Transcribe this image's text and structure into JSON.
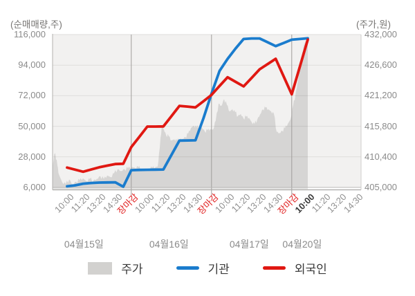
{
  "axes": {
    "left_title": "(순매매량,주)",
    "right_title": "(주가,원)",
    "left_ticks": [
      "116,000",
      "94,000",
      "72,000",
      "50,000",
      "28,000",
      "6,000"
    ],
    "right_ticks": [
      "432,000",
      "426,600",
      "421,200",
      "415,800",
      "410,400",
      "405,000"
    ]
  },
  "x_axis": {
    "tick_labels": [
      {
        "text": "10:00",
        "slot": 0,
        "style": "normal"
      },
      {
        "text": "11:20",
        "slot": 2,
        "style": "normal"
      },
      {
        "text": "13:20",
        "slot": 4,
        "style": "normal"
      },
      {
        "text": "14:30",
        "slot": 6,
        "style": "normal"
      },
      {
        "text": "장마감",
        "slot": 8,
        "style": "close"
      },
      {
        "text": "10:00",
        "slot": 10,
        "style": "normal"
      },
      {
        "text": "11:20",
        "slot": 12,
        "style": "normal"
      },
      {
        "text": "13:20",
        "slot": 14,
        "style": "normal"
      },
      {
        "text": "14:30",
        "slot": 16,
        "style": "normal"
      },
      {
        "text": "장마감",
        "slot": 18,
        "style": "close"
      },
      {
        "text": "10:00",
        "slot": 20,
        "style": "normal"
      },
      {
        "text": "11:20",
        "slot": 22,
        "style": "normal"
      },
      {
        "text": "13:20",
        "slot": 24,
        "style": "normal"
      },
      {
        "text": "14:30",
        "slot": 26,
        "style": "normal"
      },
      {
        "text": "장마감",
        "slot": 28,
        "style": "close"
      },
      {
        "text": "10:00",
        "slot": 30,
        "style": "current"
      },
      {
        "text": "11:20",
        "slot": 32,
        "style": "normal"
      },
      {
        "text": "13:20",
        "slot": 34,
        "style": "normal"
      },
      {
        "text": "14:30",
        "slot": 36,
        "style": "normal"
      }
    ],
    "day_labels": [
      {
        "text": "04월15일",
        "slot": 2.1
      },
      {
        "text": "04월16일",
        "slot": 12.7
      },
      {
        "text": "04월17일",
        "slot": 22.7
      },
      {
        "text": "04월20일",
        "slot": 29.3
      }
    ]
  },
  "legend": {
    "items": [
      {
        "label": "주가",
        "marker": "area",
        "color": "#d2d1cf"
      },
      {
        "label": "기관",
        "marker": "line",
        "color": "#1a7ccd"
      },
      {
        "label": "외국인",
        "marker": "line",
        "color": "#e01812"
      }
    ]
  },
  "chart_data": {
    "type": "area+line",
    "title": "",
    "left_axis": {
      "label": "(순매매량,주)",
      "min": 6000,
      "max": 116000,
      "tick_step": 22000
    },
    "right_axis": {
      "label": "(주가,원)",
      "min": 405000,
      "max": 432000,
      "tick_step": 5400
    },
    "x_note": "slots are half-label intervals; labels sit on even slots; data ends at slot 30 (04월20일 10:00)",
    "day_boundary_slots": [
      8,
      18,
      28
    ],
    "series": [
      {
        "name": "주가",
        "type": "area",
        "axis": "right",
        "fill": "rgba(25,22,18,0.125)",
        "points": [
          [
            -1.81,
            408300
          ],
          [
            -1.6,
            410900
          ],
          [
            -1.47,
            411000
          ],
          [
            -1.2,
            408800
          ],
          [
            -1.03,
            407300
          ],
          [
            -0.6,
            405900
          ],
          [
            -0.17,
            405600
          ],
          [
            0.26,
            406400
          ],
          [
            0.69,
            405500
          ],
          [
            1.12,
            406000
          ],
          [
            1.55,
            406300
          ],
          [
            1.98,
            406600
          ],
          [
            2.41,
            406100
          ],
          [
            2.84,
            406500
          ],
          [
            3.28,
            406200
          ],
          [
            3.71,
            406500
          ],
          [
            4.14,
            407000
          ],
          [
            4.57,
            406500
          ],
          [
            5,
            407100
          ],
          [
            5.43,
            406800
          ],
          [
            5.86,
            407500
          ],
          [
            6.29,
            408200
          ],
          [
            6.72,
            407900
          ],
          [
            7.16,
            408200
          ],
          [
            7.59,
            408400
          ],
          [
            8.02,
            408600
          ],
          [
            8.45,
            408500
          ],
          [
            8.88,
            408600
          ],
          [
            9.31,
            408100
          ],
          [
            9.74,
            408000
          ],
          [
            10.17,
            408200
          ],
          [
            10.6,
            408500
          ],
          [
            11.03,
            408600
          ],
          [
            11.29,
            408700
          ],
          [
            11.55,
            412000
          ],
          [
            11.81,
            416100
          ],
          [
            12.07,
            415200
          ],
          [
            12.33,
            414300
          ],
          [
            12.67,
            414000
          ],
          [
            13.02,
            413300
          ],
          [
            13.36,
            413500
          ],
          [
            13.71,
            413300
          ],
          [
            14.05,
            413500
          ],
          [
            14.4,
            413600
          ],
          [
            14.74,
            413900
          ],
          [
            15.09,
            414500
          ],
          [
            15.43,
            415500
          ],
          [
            15.78,
            415900
          ],
          [
            16.12,
            415600
          ],
          [
            16.47,
            415800
          ],
          [
            16.81,
            415600
          ],
          [
            17.16,
            414900
          ],
          [
            17.5,
            415100
          ],
          [
            17.84,
            415300
          ],
          [
            18.19,
            415200
          ],
          [
            18.53,
            416800
          ],
          [
            18.88,
            419800
          ],
          [
            19.22,
            419400
          ],
          [
            19.57,
            420600
          ],
          [
            19.91,
            419600
          ],
          [
            20.26,
            418400
          ],
          [
            20.6,
            418800
          ],
          [
            20.95,
            418300
          ],
          [
            21.29,
            417600
          ],
          [
            21.64,
            418000
          ],
          [
            21.98,
            417200
          ],
          [
            22.33,
            417500
          ],
          [
            22.67,
            417300
          ],
          [
            23.02,
            416500
          ],
          [
            23.36,
            416200
          ],
          [
            23.71,
            417000
          ],
          [
            24.05,
            417900
          ],
          [
            24.4,
            418800
          ],
          [
            24.74,
            419100
          ],
          [
            25.09,
            418800
          ],
          [
            25.43,
            418400
          ],
          [
            25.78,
            418000
          ],
          [
            26.12,
            414800
          ],
          [
            26.47,
            414600
          ],
          [
            26.81,
            415000
          ],
          [
            27.16,
            415500
          ],
          [
            27.5,
            416200
          ],
          [
            27.84,
            417000
          ],
          [
            28.19,
            419600
          ],
          [
            28.45,
            421200
          ],
          [
            28.71,
            423300
          ],
          [
            28.97,
            425500
          ],
          [
            29.22,
            427900
          ],
          [
            29.48,
            430000
          ],
          [
            29.74,
            430900
          ],
          [
            30,
            430500
          ]
        ]
      },
      {
        "name": "기관",
        "type": "line",
        "axis": "left",
        "color": "#1a7ccd",
        "start_slot": 0,
        "values": [
          6800,
          7500,
          8700,
          9200,
          9500,
          9600,
          9700,
          6500,
          18400,
          18600,
          18700,
          18800,
          18900,
          29300,
          39700,
          39800,
          39900,
          55800,
          73500,
          89800,
          98500,
          106000,
          112800,
          113200,
          113200,
          110500,
          107700,
          110000,
          112300,
          112800,
          113300
        ]
      },
      {
        "name": "외국인",
        "type": "line",
        "axis": "left",
        "color": "#e01812",
        "start_slot": 0,
        "values": [
          20300,
          18800,
          17300,
          18900,
          20500,
          21700,
          22800,
          23000,
          35000,
          42400,
          49800,
          49800,
          49900,
          57200,
          64700,
          64200,
          63600,
          68000,
          72600,
          79000,
          85300,
          82000,
          78700,
          84800,
          91000,
          94800,
          98600,
          85800,
          73000,
          92700,
          112400
        ]
      }
    ]
  }
}
